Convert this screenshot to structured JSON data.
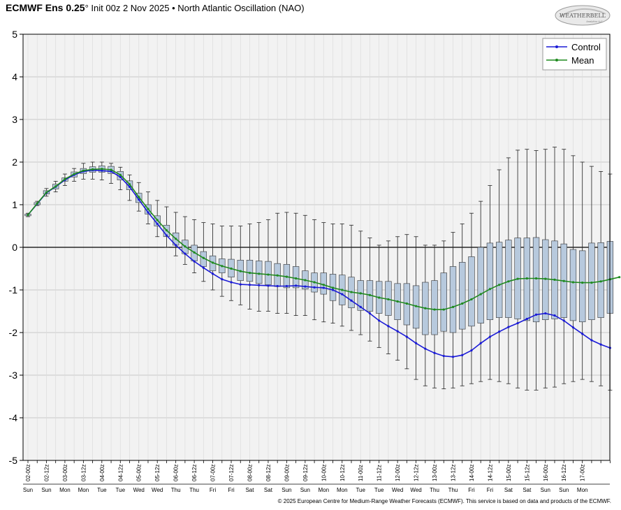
{
  "header": {
    "model": "ECMWF Ens 0.25",
    "degree": "°",
    "init": "Init 00z 2 Nov 2025",
    "bullet": "•",
    "product": "North Atlantic Oscillation (NAO)"
  },
  "logo": {
    "text": "WEATHERBELL",
    "subtext": "Analytics LLC"
  },
  "footer": {
    "credit": "© 2025 European Centre for Medium-Range Weather Forecasts (ECMWF). This service is based on data and products of the ECMWF."
  },
  "colors": {
    "control": "#1a1ad6",
    "mean": "#1f8a1f",
    "box_fill": "#b7c9dd",
    "plot_bg": "#f2f2f2"
  },
  "chart_data": {
    "type": "box",
    "ylim": [
      -5,
      5
    ],
    "yticks": [
      "-5",
      "-4",
      "-3",
      "-2",
      "-1",
      "0",
      "1",
      "2",
      "3",
      "4",
      "5"
    ],
    "grid": true,
    "legend": {
      "position": "top-right",
      "entries": [
        "Control",
        "Mean"
      ]
    },
    "time_labels": [
      "02-00z",
      "02-12z",
      "03-00z",
      "03-12z",
      "04-00z",
      "04-12z",
      "05-00z",
      "05-12z",
      "06-00z",
      "06-12z",
      "07-00z",
      "07-12z",
      "08-00z",
      "08-12z",
      "09-00z",
      "09-12z",
      "10-00z",
      "10-12z",
      "11-00z",
      "11-12z",
      "12-00z",
      "12-12z",
      "13-00z",
      "13-12z",
      "14-00z",
      "14-12z",
      "15-00z",
      "15-12z",
      "16-00z",
      "16-12z",
      "17-00z"
    ],
    "day_labels": [
      "Sun",
      "Sun",
      "Mon",
      "Mon",
      "Tue",
      "Tue",
      "Wed",
      "Wed",
      "Thu",
      "Thu",
      "Fri",
      "Fri",
      "Sat",
      "Sat",
      "Sun",
      "Sun",
      "Mon",
      "Mon",
      "Tue",
      "Tue",
      "Wed",
      "Wed",
      "Thu",
      "Thu",
      "Fri",
      "Fri",
      "Sat",
      "Sat",
      "Sun",
      "Sun",
      "Mon"
    ],
    "series": [
      {
        "name": "Control",
        "values": [
          0.76,
          1.02,
          1.28,
          1.42,
          1.58,
          1.7,
          1.78,
          1.81,
          1.8,
          1.78,
          1.65,
          1.42,
          1.12,
          0.82,
          0.55,
          0.28,
          0.05,
          -0.15,
          -0.33,
          -0.48,
          -0.62,
          -0.75,
          -0.82,
          -0.87,
          -0.88,
          -0.89,
          -0.9,
          -0.91,
          -0.91,
          -0.9,
          -0.92,
          -0.94,
          -0.95,
          -1.0,
          -1.1,
          -1.25,
          -1.4,
          -1.55,
          -1.72,
          -1.85,
          -1.97,
          -2.1,
          -2.25,
          -2.38,
          -2.48,
          -2.55,
          -2.57,
          -2.53,
          -2.42,
          -2.25,
          -2.1,
          -1.98,
          -1.87,
          -1.78,
          -1.68,
          -1.58,
          -1.55,
          -1.6,
          -1.72,
          -1.88,
          -2.03,
          -2.18,
          -2.28,
          -2.36
        ]
      },
      {
        "name": "Mean",
        "values": [
          0.76,
          1.03,
          1.29,
          1.43,
          1.6,
          1.72,
          1.8,
          1.83,
          1.84,
          1.82,
          1.7,
          1.48,
          1.18,
          0.9,
          0.64,
          0.4,
          0.2,
          0.02,
          -0.12,
          -0.25,
          -0.36,
          -0.44,
          -0.5,
          -0.56,
          -0.6,
          -0.62,
          -0.64,
          -0.66,
          -0.69,
          -0.73,
          -0.77,
          -0.82,
          -0.88,
          -0.95,
          -1.0,
          -1.05,
          -1.08,
          -1.12,
          -1.18,
          -1.22,
          -1.27,
          -1.32,
          -1.38,
          -1.43,
          -1.46,
          -1.46,
          -1.4,
          -1.32,
          -1.22,
          -1.1,
          -0.98,
          -0.88,
          -0.8,
          -0.74,
          -0.73,
          -0.73,
          -0.74,
          -0.76,
          -0.79,
          -0.82,
          -0.83,
          -0.83,
          -0.8,
          -0.75,
          -0.7
        ]
      }
    ],
    "boxes": [
      {
        "min": 0.72,
        "q1": 0.74,
        "q3": 0.78,
        "max": 0.8
      },
      {
        "min": 0.98,
        "q1": 1.0,
        "q3": 1.05,
        "max": 1.08
      },
      {
        "min": 1.2,
        "q1": 1.25,
        "q3": 1.33,
        "max": 1.38
      },
      {
        "min": 1.3,
        "q1": 1.37,
        "q3": 1.48,
        "max": 1.55
      },
      {
        "min": 1.45,
        "q1": 1.55,
        "q3": 1.63,
        "max": 1.72
      },
      {
        "min": 1.55,
        "q1": 1.65,
        "q3": 1.77,
        "max": 1.85
      },
      {
        "min": 1.6,
        "q1": 1.73,
        "q3": 1.85,
        "max": 1.97
      },
      {
        "min": 1.6,
        "q1": 1.76,
        "q3": 1.89,
        "max": 2.0
      },
      {
        "min": 1.58,
        "q1": 1.76,
        "q3": 1.91,
        "max": 2.0
      },
      {
        "min": 1.5,
        "q1": 1.73,
        "q3": 1.9,
        "max": 1.97
      },
      {
        "min": 1.35,
        "q1": 1.58,
        "q3": 1.78,
        "max": 1.88
      },
      {
        "min": 1.1,
        "q1": 1.35,
        "q3": 1.56,
        "max": 1.7
      },
      {
        "min": 0.85,
        "q1": 1.05,
        "q3": 1.27,
        "max": 1.52
      },
      {
        "min": 0.55,
        "q1": 0.78,
        "q3": 1.0,
        "max": 1.3
      },
      {
        "min": 0.25,
        "q1": 0.5,
        "q3": 0.74,
        "max": 1.1
      },
      {
        "min": 0.0,
        "q1": 0.25,
        "q3": 0.52,
        "max": 0.95
      },
      {
        "min": -0.2,
        "q1": 0.05,
        "q3": 0.34,
        "max": 0.82
      },
      {
        "min": -0.4,
        "q1": -0.15,
        "q3": 0.17,
        "max": 0.72
      },
      {
        "min": -0.6,
        "q1": -0.32,
        "q3": 0.05,
        "max": 0.65
      },
      {
        "min": -0.8,
        "q1": -0.45,
        "q3": -0.1,
        "max": 0.58
      },
      {
        "min": -1.0,
        "q1": -0.55,
        "q3": -0.2,
        "max": 0.55
      },
      {
        "min": -1.15,
        "q1": -0.6,
        "q3": -0.27,
        "max": 0.5
      },
      {
        "min": -1.25,
        "q1": -0.7,
        "q3": -0.28,
        "max": 0.5
      },
      {
        "min": -1.35,
        "q1": -0.78,
        "q3": -0.3,
        "max": 0.5
      },
      {
        "min": -1.45,
        "q1": -0.8,
        "q3": -0.3,
        "max": 0.55
      },
      {
        "min": -1.5,
        "q1": -0.85,
        "q3": -0.32,
        "max": 0.58
      },
      {
        "min": -1.5,
        "q1": -0.88,
        "q3": -0.33,
        "max": 0.65
      },
      {
        "min": -1.55,
        "q1": -0.92,
        "q3": -0.38,
        "max": 0.8
      },
      {
        "min": -1.55,
        "q1": -0.95,
        "q3": -0.4,
        "max": 0.82
      },
      {
        "min": -1.6,
        "q1": -0.95,
        "q3": -0.45,
        "max": 0.8
      },
      {
        "min": -1.6,
        "q1": -0.98,
        "q3": -0.55,
        "max": 0.75
      },
      {
        "min": -1.7,
        "q1": -1.05,
        "q3": -0.6,
        "max": 0.65
      },
      {
        "min": -1.75,
        "q1": -1.1,
        "q3": -0.6,
        "max": 0.58
      },
      {
        "min": -1.78,
        "q1": -1.25,
        "q3": -0.63,
        "max": 0.55
      },
      {
        "min": -1.85,
        "q1": -1.35,
        "q3": -0.65,
        "max": 0.55
      },
      {
        "min": -1.95,
        "q1": -1.42,
        "q3": -0.7,
        "max": 0.52
      },
      {
        "min": -2.05,
        "q1": -1.48,
        "q3": -0.78,
        "max": 0.38
      },
      {
        "min": -2.2,
        "q1": -1.5,
        "q3": -0.78,
        "max": 0.22
      },
      {
        "min": -2.35,
        "q1": -1.55,
        "q3": -0.8,
        "max": 0.05
      },
      {
        "min": -2.5,
        "q1": -1.6,
        "q3": -0.8,
        "max": 0.15
      },
      {
        "min": -2.65,
        "q1": -1.7,
        "q3": -0.85,
        "max": 0.25
      },
      {
        "min": -2.85,
        "q1": -1.82,
        "q3": -0.85,
        "max": 0.3
      },
      {
        "min": -3.1,
        "q1": -1.9,
        "q3": -0.9,
        "max": 0.25
      },
      {
        "min": -3.25,
        "q1": -2.05,
        "q3": -0.82,
        "max": 0.05
      },
      {
        "min": -3.3,
        "q1": -2.05,
        "q3": -0.78,
        "max": 0.05
      },
      {
        "min": -3.32,
        "q1": -1.97,
        "q3": -0.6,
        "max": 0.15
      },
      {
        "min": -3.3,
        "q1": -2.0,
        "q3": -0.45,
        "max": 0.35
      },
      {
        "min": -3.25,
        "q1": -1.92,
        "q3": -0.35,
        "max": 0.55
      },
      {
        "min": -3.2,
        "q1": -1.85,
        "q3": -0.22,
        "max": 0.8
      },
      {
        "min": -3.15,
        "q1": -1.78,
        "q3": 0.0,
        "max": 1.08
      },
      {
        "min": -3.1,
        "q1": -1.7,
        "q3": 0.1,
        "max": 1.45
      },
      {
        "min": -3.15,
        "q1": -1.65,
        "q3": 0.12,
        "max": 1.82
      },
      {
        "min": -3.2,
        "q1": -1.65,
        "q3": 0.17,
        "max": 2.1
      },
      {
        "min": -3.3,
        "q1": -1.68,
        "q3": 0.22,
        "max": 2.28
      },
      {
        "min": -3.35,
        "q1": -1.72,
        "q3": 0.22,
        "max": 2.3
      },
      {
        "min": -3.35,
        "q1": -1.75,
        "q3": 0.23,
        "max": 2.27
      },
      {
        "min": -3.3,
        "q1": -1.7,
        "q3": 0.18,
        "max": 2.3
      },
      {
        "min": -3.28,
        "q1": -1.68,
        "q3": 0.15,
        "max": 2.35
      },
      {
        "min": -3.2,
        "q1": -1.65,
        "q3": 0.08,
        "max": 2.3
      },
      {
        "min": -3.15,
        "q1": -1.72,
        "q3": -0.05,
        "max": 2.15
      },
      {
        "min": -3.1,
        "q1": -1.75,
        "q3": -0.08,
        "max": 2.0
      },
      {
        "min": -3.15,
        "q1": -1.7,
        "q3": 0.1,
        "max": 1.9
      },
      {
        "min": -3.25,
        "q1": -1.65,
        "q3": 0.11,
        "max": 1.78
      },
      {
        "min": -3.35,
        "q1": -1.55,
        "q3": 0.14,
        "max": 1.72
      }
    ]
  }
}
